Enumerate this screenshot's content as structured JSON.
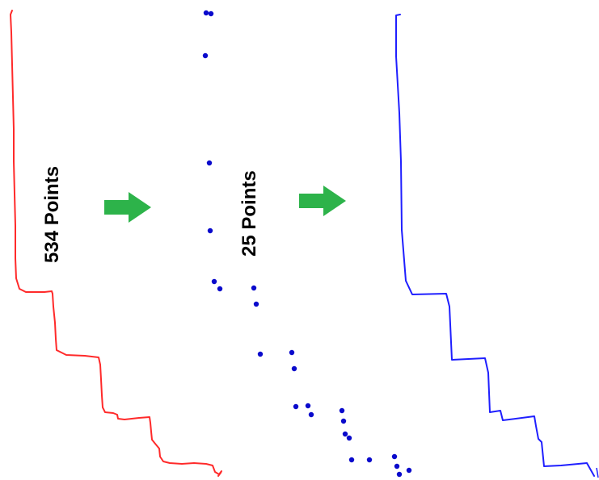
{
  "labels": {
    "original_count": "534 Points",
    "simplified_count": "25 Points"
  },
  "colors": {
    "original_path": "#ff2a2a",
    "simplified_points": "#0a0acc",
    "simplified_path": "#1f1fff",
    "arrow": "#2db34a"
  }
}
